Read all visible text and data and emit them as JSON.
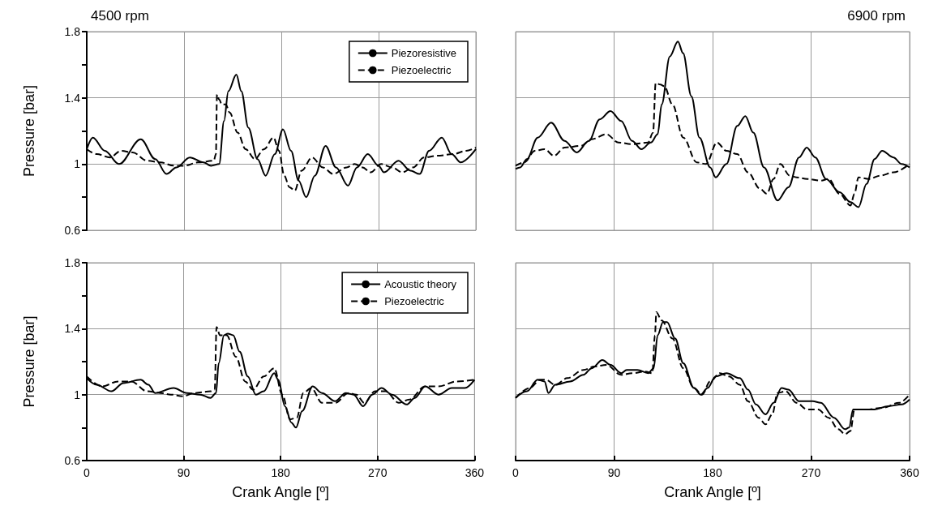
{
  "chart_data": [
    {
      "type": "line",
      "title": "4500 rpm",
      "ylabel": "Pressure [bar]",
      "xlim": [
        0,
        360
      ],
      "xticks": [
        0,
        90,
        180,
        270,
        360
      ],
      "ylim": [
        0.6,
        1.8
      ],
      "yticks": [
        0.6,
        {
          "value": 0.8,
          "label": null
        },
        {
          "value": 1.0,
          "label": "1"
        },
        {
          "value": 1.2,
          "label": null
        },
        1.4,
        {
          "value": 1.6,
          "label": null
        },
        1.8
      ],
      "grid": true,
      "legend": "top right",
      "tick_labels": "y",
      "series": [
        {
          "name": "Piezoresistive",
          "color": "#000000",
          "line_style": "solid",
          "x": [
            0,
            5.7,
            16.7,
            29.8,
            50,
            63.4,
            73.8,
            83,
            95.4,
            108,
            115,
            122.5,
            127,
            131,
            138.4,
            143,
            149.5,
            158,
            165.5,
            174,
            181.5,
            189,
            196,
            203,
            211,
            221,
            230.6,
            241.7,
            250,
            260,
            270,
            275,
            288.4,
            299.5,
            308,
            316.7,
            328.5,
            337.6,
            346,
            360
          ],
          "values": [
            1.09,
            1.16,
            1.08,
            1.0,
            1.15,
            1.03,
            0.94,
            0.98,
            1.04,
            1.01,
            0.99,
            1.0,
            1.26,
            1.44,
            1.54,
            1.44,
            1.22,
            1.03,
            0.93,
            1.06,
            1.21,
            1.08,
            0.9,
            0.8,
            0.93,
            1.11,
            0.98,
            0.87,
            0.98,
            1.06,
            0.99,
            0.95,
            1.02,
            0.96,
            0.94,
            1.08,
            1.16,
            1.06,
            1.01,
            1.09
          ]
        },
        {
          "name": "Piezoelectric",
          "color": "#000000",
          "line_style": "dashed",
          "x": [
            0,
            9.3,
            21.6,
            31.5,
            42.5,
            56,
            68.4,
            80.6,
            90.5,
            103,
            117.5,
            119.5,
            120.5,
            122.5,
            125,
            128.6,
            132.3,
            139.6,
            147,
            155.6,
            164,
            172.8,
            177.8,
            182.7,
            187.6,
            192.5,
            198.7,
            208.5,
            218.4,
            228,
            240.5,
            247.8,
            255.2,
            262.6,
            272.4,
            282.3,
            292,
            302,
            312,
            324,
            339,
            351,
            360
          ],
          "values": [
            1.09,
            1.06,
            1.04,
            1.08,
            1.07,
            1.02,
            1.01,
            0.99,
            0.99,
            1.01,
            1.02,
            1.06,
            1.42,
            1.39,
            1.36,
            1.36,
            1.31,
            1.19,
            1.09,
            1.03,
            1.09,
            1.16,
            1.08,
            0.93,
            0.86,
            0.84,
            0.96,
            1.04,
            0.98,
            0.94,
            0.98,
            1.0,
            0.98,
            0.95,
            1.0,
            0.98,
            0.95,
            0.98,
            1.04,
            1.05,
            1.06,
            1.08,
            1.1
          ]
        }
      ]
    },
    {
      "type": "line",
      "title": "6900 rpm",
      "xlim": [
        0,
        360
      ],
      "xticks": [
        0,
        90,
        180,
        270,
        360
      ],
      "ylim": [
        0.6,
        1.8
      ],
      "yticks": [
        0.6,
        1,
        1.4,
        1.8
      ],
      "grid": true,
      "tick_labels": false,
      "series": [
        {
          "color": "#000000",
          "line_style": "solid",
          "x": [
            0,
            4.2,
            10.3,
            20.2,
            32.5,
            44.8,
            55.9,
            67,
            76.8,
            86.7,
            96.5,
            106.4,
            115,
            123.6,
            129.8,
            133.5,
            140.9,
            148.3,
            153,
            160.6,
            168,
            177.8,
            182.8,
            192.6,
            202.5,
            209.9,
            217.2,
            227,
            239.4,
            249.3,
            259,
            266,
            273.9,
            283.7,
            296,
            306,
            313.3,
            320.7,
            328,
            334.9,
            345.3,
            352.7,
            360
          ],
          "values": [
            0.97,
            0.98,
            1.03,
            1.16,
            1.25,
            1.14,
            1.07,
            1.14,
            1.27,
            1.32,
            1.26,
            1.14,
            1.09,
            1.13,
            1.18,
            1.36,
            1.65,
            1.74,
            1.67,
            1.41,
            1.16,
            0.98,
            0.92,
            1.0,
            1.23,
            1.29,
            1.19,
            0.98,
            0.78,
            0.86,
            1.04,
            1.1,
            1.04,
            0.91,
            0.83,
            0.77,
            0.74,
            0.88,
            1.03,
            1.08,
            1.04,
            1.0,
            0.98
          ]
        },
        {
          "color": "#000000",
          "line_style": "dashed",
          "x": [
            0,
            7.9,
            17.7,
            26.4,
            35,
            44.8,
            59.6,
            69.5,
            83,
            94,
            106.4,
            121,
            125.6,
            128,
            132.3,
            135.9,
            143.3,
            153.2,
            165.5,
            174,
            184,
            192.6,
            202.5,
            212.3,
            223.4,
            229.6,
            235.7,
            241.9,
            250.5,
            256.7,
            266.5,
            278.8,
            286,
            296,
            306,
            309.6,
            313.3,
            323,
            333,
            345.3,
            360
          ],
          "values": [
            0.99,
            1.01,
            1.08,
            1.09,
            1.05,
            1.1,
            1.11,
            1.15,
            1.18,
            1.13,
            1.12,
            1.13,
            1.19,
            1.49,
            1.48,
            1.47,
            1.36,
            1.16,
            1.01,
            1.0,
            1.13,
            1.08,
            1.06,
            0.95,
            0.85,
            0.82,
            0.91,
            1.0,
            0.93,
            0.92,
            0.91,
            0.9,
            0.91,
            0.82,
            0.75,
            0.82,
            0.92,
            0.91,
            0.93,
            0.95,
            1.0
          ]
        }
      ]
    },
    {
      "type": "line",
      "xlabel": "Crank Angle [º]",
      "ylabel": "Pressure [bar]",
      "xlim": [
        0,
        360
      ],
      "xticks": [
        0,
        90,
        180,
        270,
        360
      ],
      "ylim": [
        0.6,
        1.8
      ],
      "yticks": [
        0.6,
        {
          "value": 0.8,
          "label": null
        },
        {
          "value": 1.0,
          "label": "1"
        },
        {
          "value": 1.2,
          "label": null
        },
        1.4,
        {
          "value": 1.6,
          "label": null
        },
        1.8
      ],
      "grid": true,
      "legend": "top right",
      "series": [
        {
          "name": "Acoustic theory",
          "color": "#000000",
          "line_style": "solid",
          "x": [
            0,
            9.3,
            22.9,
            34,
            50,
            57.3,
            63.4,
            80.6,
            93,
            105.2,
            115,
            120,
            122.5,
            127.4,
            131,
            136,
            142,
            149.5,
            157,
            164.3,
            174,
            177.8,
            184,
            190,
            194.2,
            200,
            209.7,
            218.4,
            230.6,
            240.5,
            247.8,
            256.5,
            265,
            273.7,
            283.5,
            297,
            304.6,
            314.2,
            326.5,
            338.9,
            351,
            360
          ],
          "values": [
            1.1,
            1.06,
            1.02,
            1.07,
            1.09,
            1.06,
            1.01,
            1.04,
            1.01,
            1.0,
            0.98,
            1.01,
            1.19,
            1.36,
            1.37,
            1.36,
            1.26,
            1.11,
            1.0,
            1.02,
            1.13,
            1.09,
            0.93,
            0.83,
            0.8,
            0.9,
            1.05,
            1.01,
            0.96,
            1.01,
            1.0,
            0.93,
            1.0,
            1.04,
            1.0,
            0.94,
            0.98,
            1.05,
            1.0,
            1.04,
            1.04,
            1.09
          ]
        },
        {
          "name": "Piezoelectric",
          "color": "#000000",
          "line_style": "dashed",
          "x": [
            0,
            14.3,
            29,
            41.3,
            56,
            68.4,
            78.2,
            89.3,
            100.3,
            115,
            118.8,
            120.5,
            123.7,
            130,
            138.4,
            147,
            154.4,
            164.3,
            174,
            181.5,
            188.8,
            195,
            201.1,
            208.5,
            218.4,
            230.6,
            243,
            250.3,
            257.7,
            267.6,
            277.4,
            289.7,
            299.5,
            314.2,
            326.5,
            343.7,
            360
          ],
          "values": [
            1.11,
            1.05,
            1.08,
            1.08,
            1.02,
            1.01,
            1.0,
            0.99,
            1.01,
            1.02,
            1.03,
            1.41,
            1.36,
            1.36,
            1.23,
            1.08,
            1.03,
            1.11,
            1.16,
            1.0,
            0.85,
            0.86,
            1.01,
            1.04,
            0.95,
            0.95,
            1.01,
            1.0,
            0.95,
            1.02,
            1.02,
            0.95,
            0.97,
            1.05,
            1.05,
            1.08,
            1.09
          ]
        }
      ]
    },
    {
      "type": "line",
      "xlabel": "Crank Angle [º]",
      "xlim": [
        0,
        360
      ],
      "xticks": [
        0,
        90,
        180,
        270,
        360
      ],
      "ylim": [
        0.6,
        1.8
      ],
      "yticks": [
        0.6,
        1,
        1.4,
        1.8
      ],
      "grid": true,
      "tick_labels": "x",
      "series": [
        {
          "color": "#000000",
          "line_style": "solid",
          "x": [
            0,
            10.3,
            20.2,
            26.4,
            30,
            36.2,
            49.8,
            62,
            69.5,
            79.3,
            86.7,
            96.5,
            101.5,
            111.3,
            121.2,
            126.1,
            129.8,
            134.7,
            138.4,
            145.8,
            153.2,
            163,
            169.2,
            175.4,
            182.8,
            192.6,
            204.9,
            212.3,
            219.7,
            228.4,
            235.7,
            243,
            249.3,
            259,
            271.4,
            278.8,
            291,
            301,
            304.7,
            308.4,
            315.8,
            328,
            340.4,
            352.7,
            360
          ],
          "values": [
            0.98,
            1.02,
            1.09,
            1.08,
            1.01,
            1.06,
            1.08,
            1.12,
            1.16,
            1.21,
            1.18,
            1.13,
            1.15,
            1.15,
            1.13,
            1.16,
            1.36,
            1.44,
            1.44,
            1.34,
            1.19,
            1.04,
            1.0,
            1.04,
            1.11,
            1.13,
            1.1,
            1.03,
            0.94,
            0.88,
            0.95,
            1.04,
            1.03,
            0.96,
            0.96,
            0.95,
            0.86,
            0.79,
            0.8,
            0.91,
            0.91,
            0.91,
            0.93,
            0.94,
            0.97
          ]
        },
        {
          "color": "#000000",
          "line_style": "dashed",
          "x": [
            0,
            12.8,
            22.7,
            27.6,
            36.2,
            47.3,
            62,
            71.9,
            83,
            96.5,
            106.4,
            118.7,
            124.9,
            127.3,
            128.6,
            133.5,
            143.3,
            153.2,
            163,
            170.4,
            177.8,
            186.5,
            195,
            204.9,
            212.3,
            222,
            228.4,
            234.5,
            239.4,
            246.8,
            256.7,
            266.5,
            276.4,
            286,
            294.8,
            301,
            306,
            309.6,
            320.7,
            335.5,
            350.3,
            360
          ],
          "values": [
            0.98,
            1.04,
            1.09,
            1.09,
            1.06,
            1.1,
            1.15,
            1.17,
            1.18,
            1.12,
            1.13,
            1.14,
            1.13,
            1.36,
            1.5,
            1.45,
            1.34,
            1.16,
            1.04,
            1.0,
            1.08,
            1.13,
            1.11,
            1.06,
            0.96,
            0.86,
            0.82,
            0.88,
            1.01,
            1.02,
            0.95,
            0.91,
            0.91,
            0.86,
            0.79,
            0.76,
            0.78,
            0.91,
            0.91,
            0.92,
            0.95,
            1.0
          ]
        }
      ]
    }
  ]
}
